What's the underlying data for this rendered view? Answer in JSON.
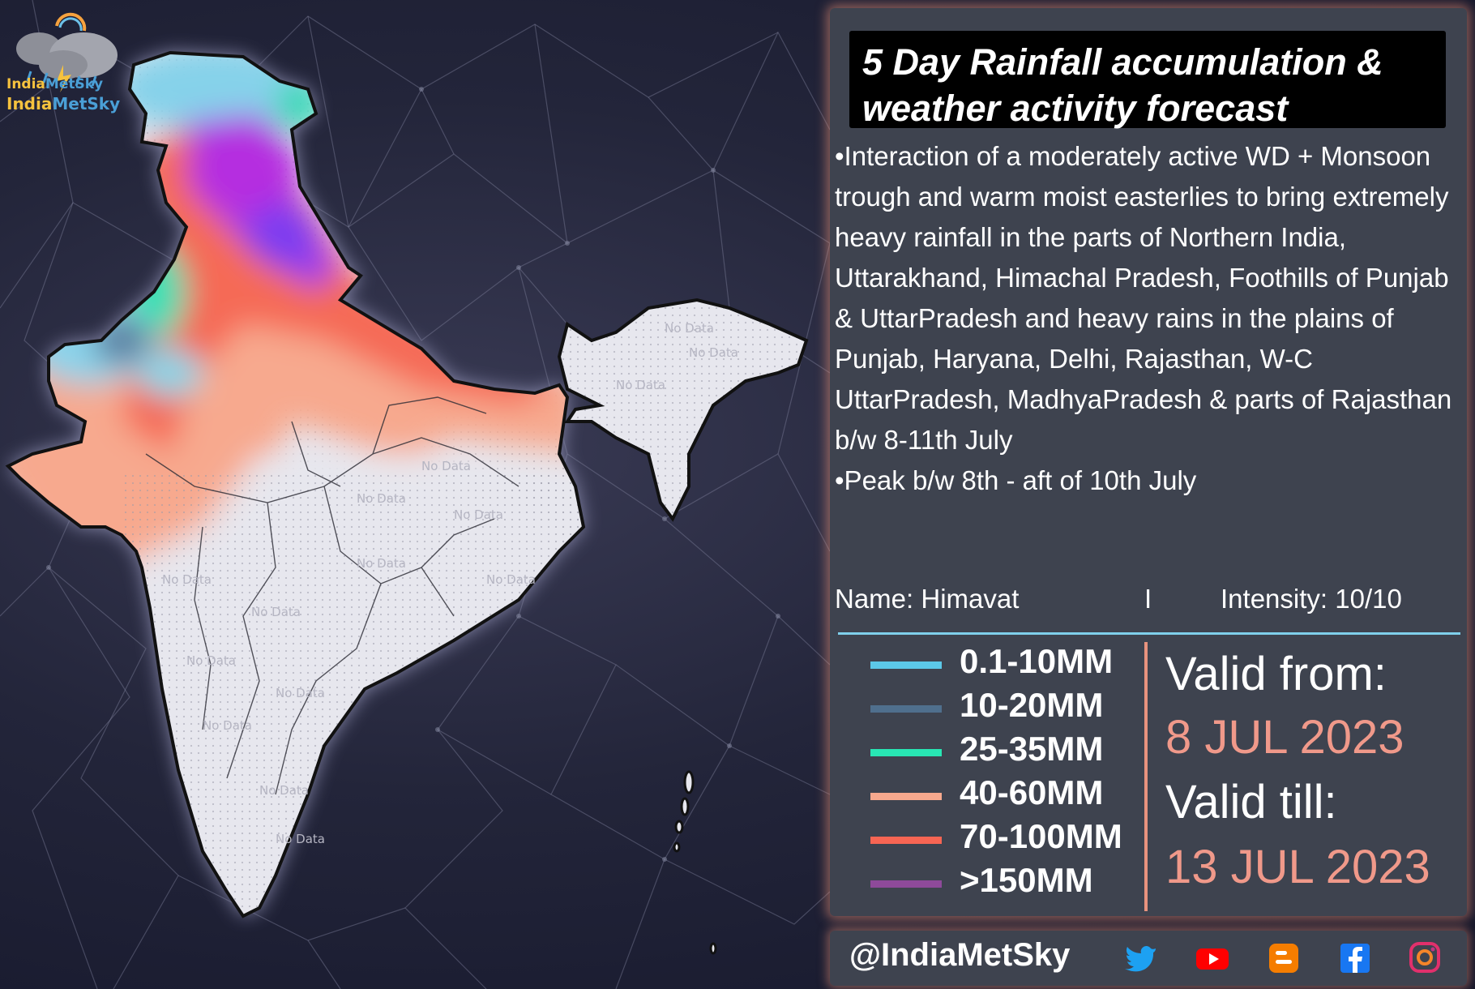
{
  "brand": {
    "logo_part1": "India",
    "logo_part2": "MetSky"
  },
  "title": "5 Day Rainfall accumulation & weather activity forecast",
  "description": [
    "•Interaction of a moderately active WD + Monsoon trough and warm moist easterlies to bring extremely heavy rainfall in the parts of Northern India, Uttarakhand, Himachal Pradesh, Foothills of Punjab & UttarPradesh and heavy rains in the plains of Punjab, Haryana, Delhi, Rajasthan, W-C UttarPradesh, MadhyaPradesh & parts of Rajasthan b/w 8-11th July",
    "•Peak b/w 8th - aft of 10th July"
  ],
  "info": {
    "name": "Name: Himavat",
    "separator": "I",
    "intensity": "Intensity: 10/10"
  },
  "legend": [
    {
      "label": "0.1-10MM",
      "color": "#5cc8e8"
    },
    {
      "label": "10-20MM",
      "color": "#4f6f8d"
    },
    {
      "label": "25-35MM",
      "color": "#28e6b4"
    },
    {
      "label": "40-60MM",
      "color": "#f7a98e"
    },
    {
      "label": "70-100MM",
      "color": "#f76553"
    },
    {
      "label": ">150MM",
      "color": "#8e4a9a"
    }
  ],
  "validity": {
    "from_label": "Valid from:",
    "from_date": "8 JUL 2023",
    "till_label": "Valid till:",
    "till_date": "13 JUL 2023"
  },
  "map": {
    "no_data_text": "No Data"
  },
  "footer": {
    "handle": "@IndiaMetSky",
    "social": [
      "twitter-icon",
      "youtube-icon",
      "blogger-icon",
      "facebook-icon",
      "instagram-icon"
    ]
  }
}
